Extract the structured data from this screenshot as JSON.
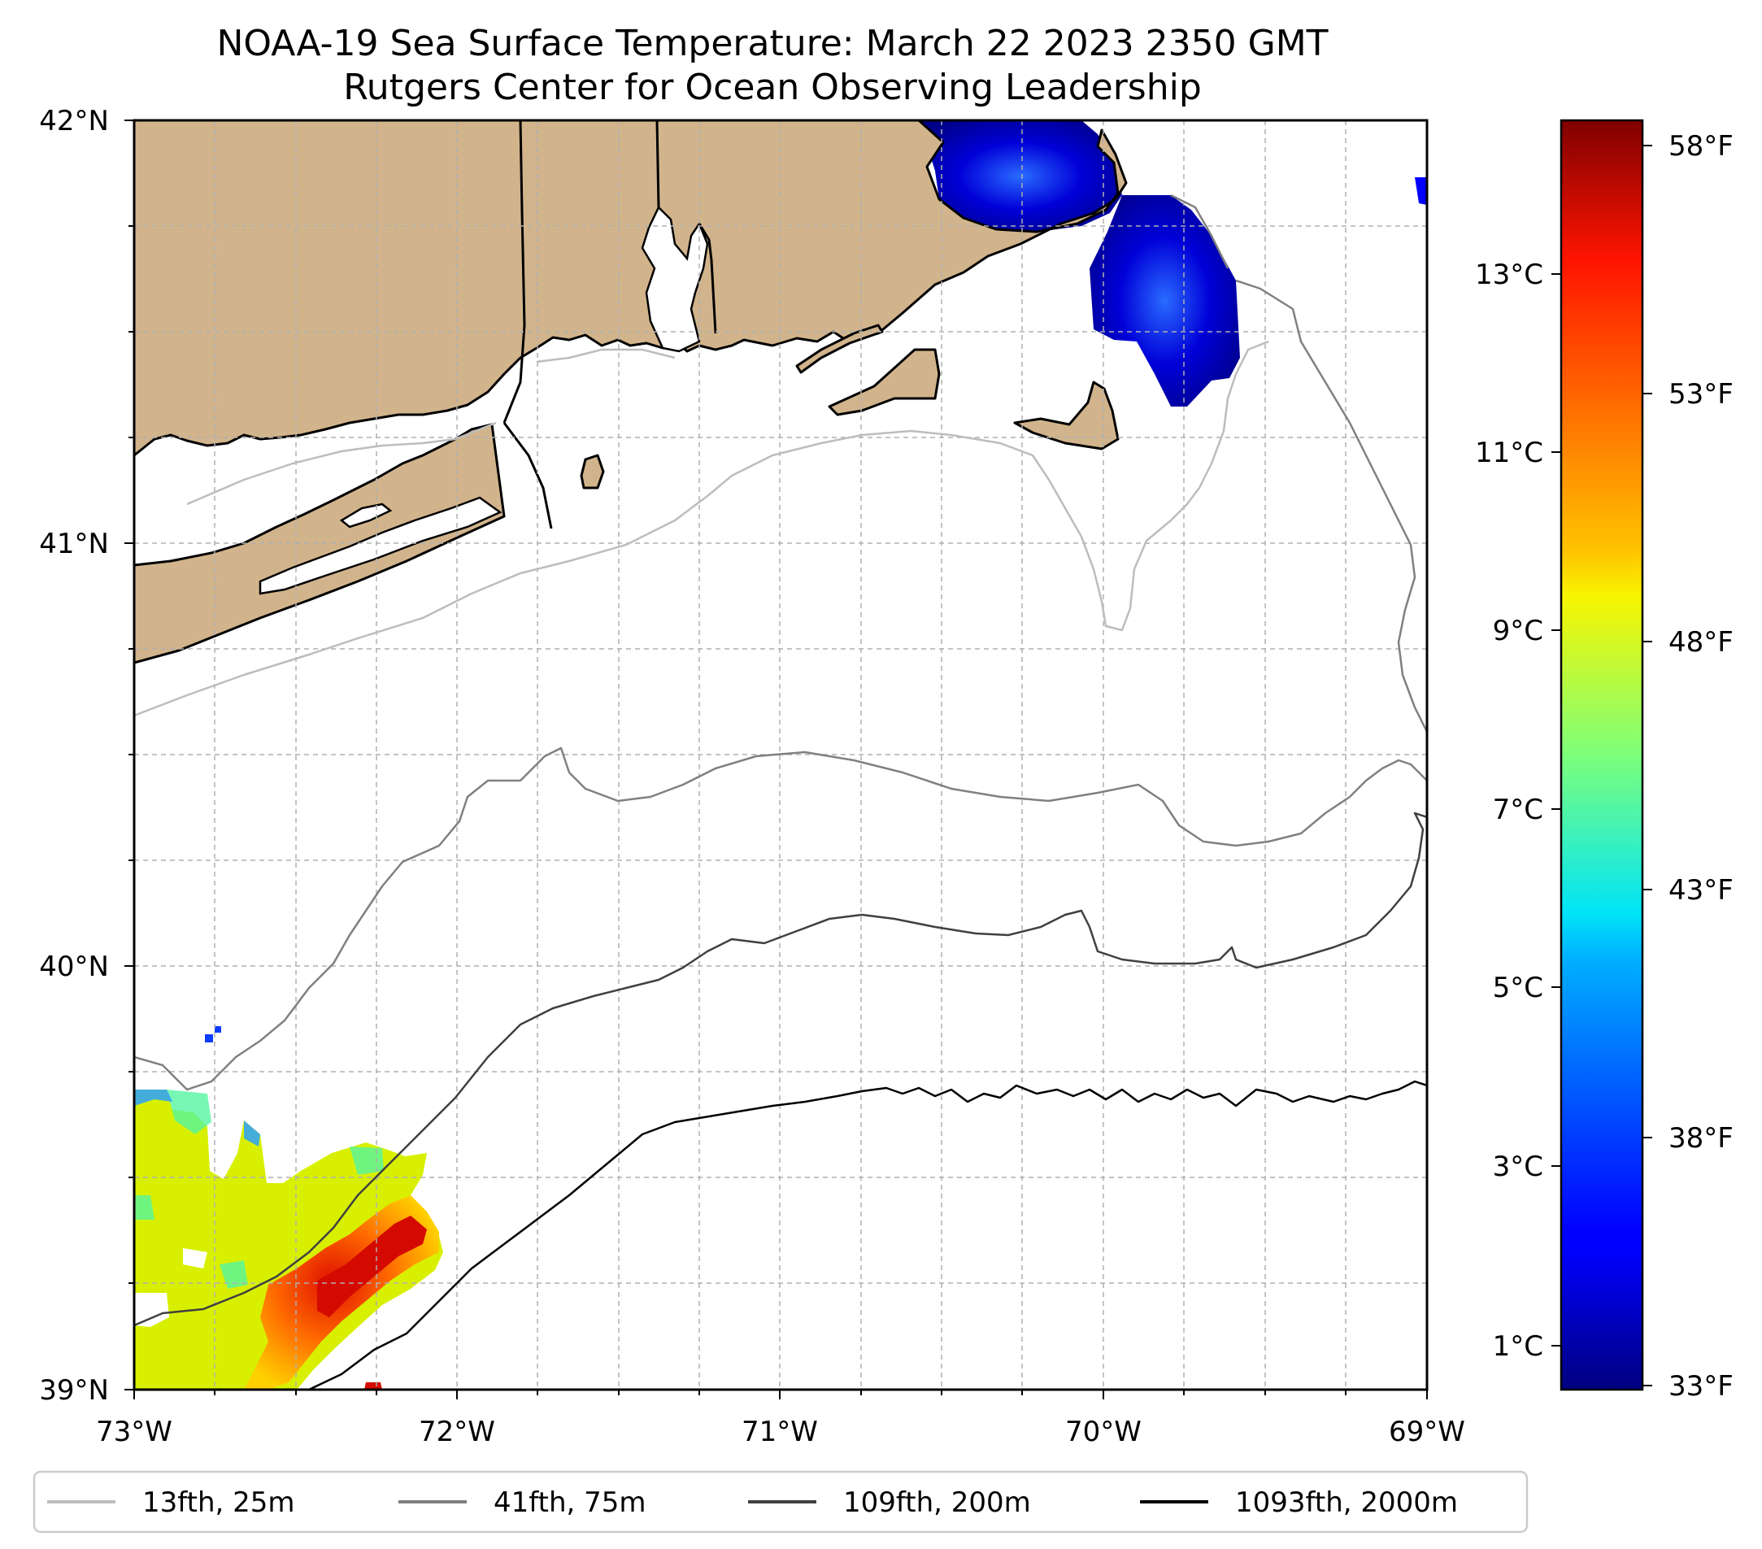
{
  "title_line1": "NOAA-19 Sea Surface Temperature: March 22 2023 2350 GMT",
  "title_line2": "Rutgers Center for Ocean Observing Leadership",
  "map": {
    "lon_range": [
      -73,
      -69
    ],
    "lat_range": [
      39,
      42
    ],
    "lon_ticks": [
      {
        "value": -73,
        "label": "73°W"
      },
      {
        "value": -72,
        "label": "72°W"
      },
      {
        "value": -71,
        "label": "71°W"
      },
      {
        "value": -70,
        "label": "70°W"
      },
      {
        "value": -69,
        "label": "69°W"
      }
    ],
    "lat_ticks": [
      {
        "value": 42,
        "label": "42°N"
      },
      {
        "value": 41,
        "label": "41°N"
      },
      {
        "value": 40,
        "label": "40°N"
      },
      {
        "value": 39,
        "label": "39°N"
      }
    ],
    "gridlines": "dashed, every 0.25°",
    "land_color": "#d2b48c",
    "ocean_color": "#ffffff"
  },
  "colorbar": {
    "colormap": "jet",
    "range_c": [
      0.5,
      14.5
    ],
    "celsius_ticks": [
      {
        "value": 1,
        "label": "1°C"
      },
      {
        "value": 3,
        "label": "3°C"
      },
      {
        "value": 5,
        "label": "5°C"
      },
      {
        "value": 7,
        "label": "7°C"
      },
      {
        "value": 9,
        "label": "9°C"
      },
      {
        "value": 11,
        "label": "11°C"
      },
      {
        "value": 13,
        "label": "13°C"
      }
    ],
    "fahrenheit_ticks": [
      {
        "value_f": 33,
        "label": "33°F"
      },
      {
        "value_f": 38,
        "label": "38°F"
      },
      {
        "value_f": 43,
        "label": "43°F"
      },
      {
        "value_f": 48,
        "label": "48°F"
      },
      {
        "value_f": 53,
        "label": "53°F"
      },
      {
        "value_f": 58,
        "label": "58°F"
      }
    ]
  },
  "legend": [
    {
      "label": "13fth, 25m",
      "color": "#bdbdbd"
    },
    {
      "label": "41fth, 75m",
      "color": "#808080"
    },
    {
      "label": "109fth, 200m",
      "color": "#404040"
    },
    {
      "label": "1093fth, 2000m",
      "color": "#000000"
    }
  ],
  "sst_regions": [
    {
      "name": "cape-cod-bay",
      "temp_c": 1.0
    },
    {
      "name": "nantucket-shoals",
      "temp_c": 1.2
    },
    {
      "name": "southwest-shelf",
      "temp_c": 9.5
    },
    {
      "name": "southwest-warm-core",
      "temp_c": 13.5
    }
  ]
}
